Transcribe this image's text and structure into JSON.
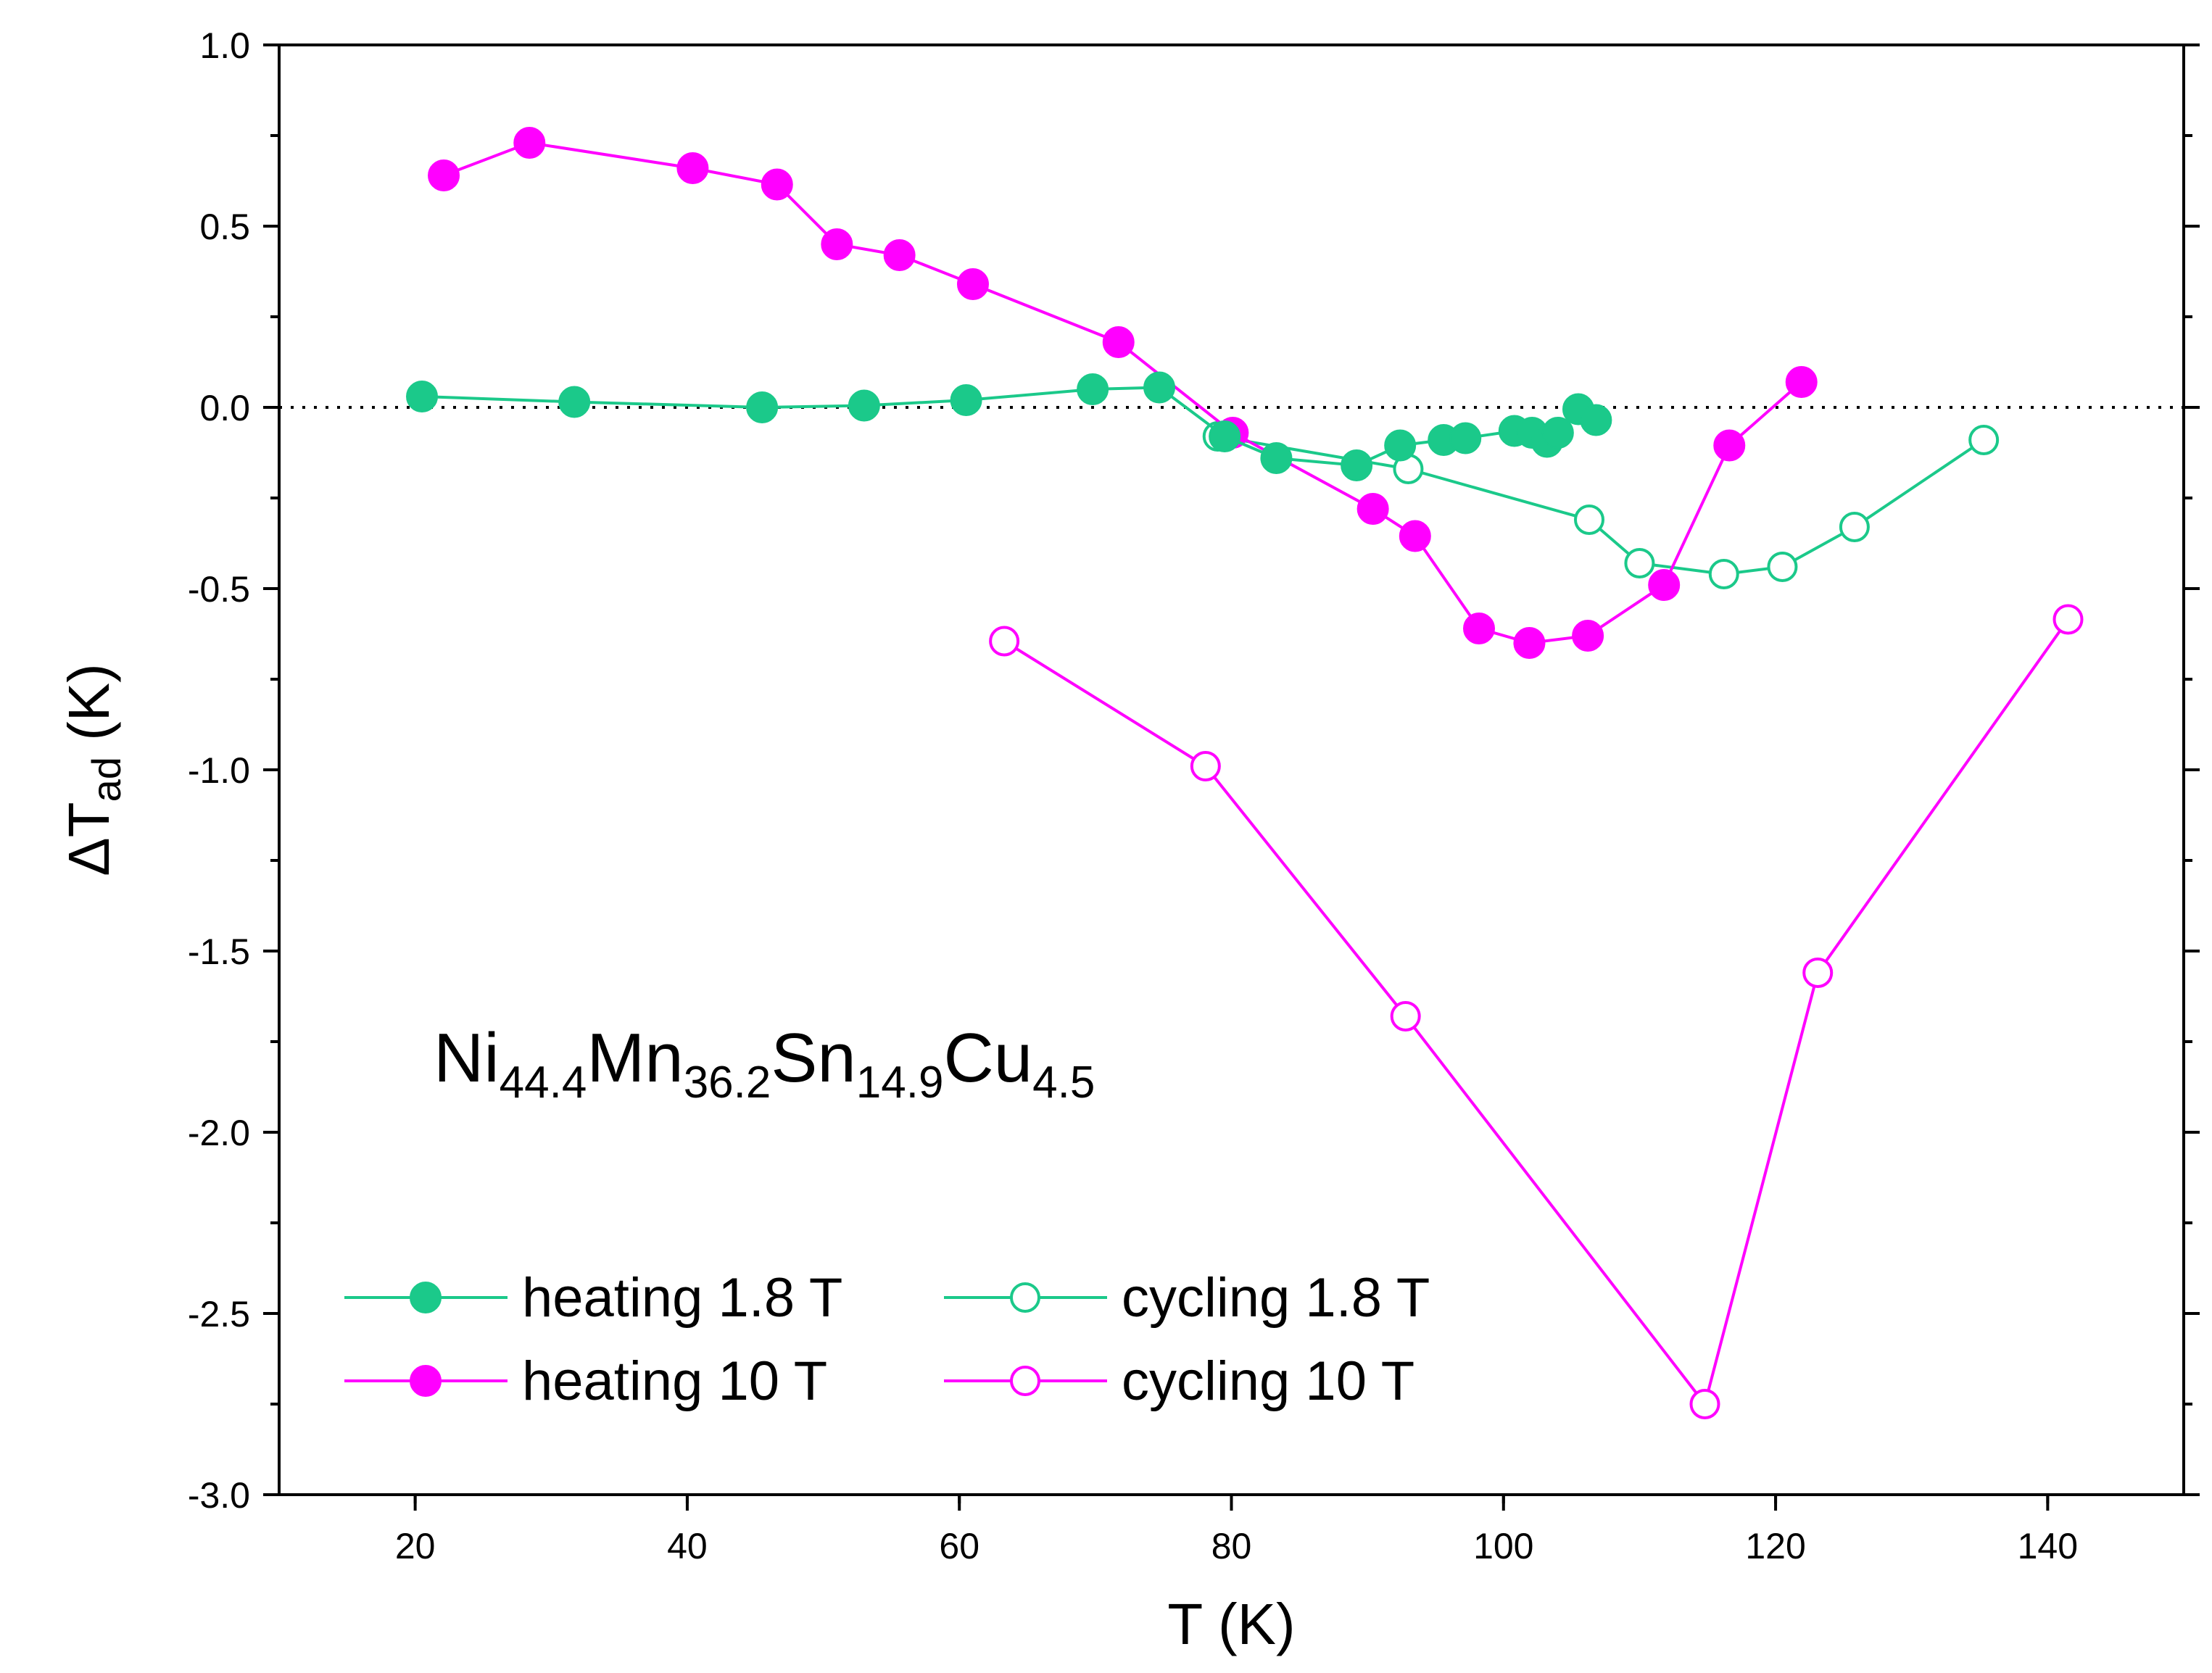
{
  "chart_data": {
    "type": "line",
    "title": "",
    "xlabel": "T (K)",
    "ylabel_main": "ΔT",
    "ylabel_sub": "ad",
    "ylabel_unit": " (K)",
    "xlim": [
      10,
      150
    ],
    "ylim": [
      -3.0,
      1.0
    ],
    "x_ticks": [
      20,
      40,
      60,
      80,
      100,
      120,
      140
    ],
    "x_tick_labels": [
      "20",
      "40",
      "60",
      "80",
      "100",
      "120",
      "140"
    ],
    "y_ticks": [
      1.0,
      0.5,
      0.0,
      -0.5,
      -1.0,
      -1.5,
      -2.0,
      -2.5,
      -3.0
    ],
    "y_tick_labels": [
      "1.0",
      "0.5",
      "0.0",
      "-0.5",
      "-1.0",
      "-1.5",
      "-2.0",
      "-2.5",
      "-3.0"
    ],
    "grid": false,
    "reference_line": {
      "y": 0.0,
      "style": "dotted"
    },
    "legend_position": "bottom-left",
    "annotation": {
      "parts": [
        {
          "text": "Ni",
          "sub": false
        },
        {
          "text": "44.4",
          "sub": true
        },
        {
          "text": "Mn",
          "sub": false
        },
        {
          "text": "36.2",
          "sub": true
        },
        {
          "text": "Sn",
          "sub": false
        },
        {
          "text": "14.9",
          "sub": true
        },
        {
          "text": "Cu",
          "sub": false
        },
        {
          "text": "4.5",
          "sub": true
        }
      ]
    },
    "series": [
      {
        "name": "heating 1.8 T",
        "color": "#1bc98a",
        "marker": "filled-circle",
        "x": [
          20.5,
          31.7,
          45.5,
          53,
          60.5,
          69.8,
          74.7,
          79.5,
          83.3,
          89.2,
          92.4,
          95.6,
          97.2,
          100.8,
          102.1,
          103.2,
          104,
          105.5,
          106.8
        ],
        "y": [
          0.03,
          0.015,
          0.0,
          0.005,
          0.02,
          0.05,
          0.055,
          -0.08,
          -0.14,
          -0.16,
          -0.105,
          -0.09,
          -0.085,
          -0.065,
          -0.07,
          -0.095,
          -0.07,
          -0.005,
          -0.035
        ]
      },
      {
        "name": "cycling 1.8 T",
        "color": "#1bc98a",
        "marker": "open-circle",
        "x": [
          79,
          93,
          106.3,
          110,
          116.2,
          120.5,
          125.8,
          135.3
        ],
        "y": [
          -0.08,
          -0.17,
          -0.31,
          -0.43,
          -0.46,
          -0.44,
          -0.33,
          -0.09
        ]
      },
      {
        "name": "heating 10 T",
        "color": "#ff00ff",
        "marker": "filled-circle",
        "x": [
          22.1,
          28.4,
          40.4,
          46.6,
          51,
          55.6,
          61,
          71.7,
          80.1,
          90.4,
          93.5,
          98.2,
          101.9,
          106.2,
          111.8,
          116.6,
          121.9
        ],
        "y": [
          0.64,
          0.73,
          0.66,
          0.615,
          0.45,
          0.42,
          0.34,
          0.18,
          -0.07,
          -0.28,
          -0.355,
          -0.61,
          -0.65,
          -0.63,
          -0.49,
          -0.105,
          0.07
        ]
      },
      {
        "name": "cycling 10 T",
        "color": "#ff00ff",
        "marker": "open-circle",
        "x": [
          63.3,
          78.1,
          92.8,
          114.8,
          123.1,
          141.5
        ],
        "y": [
          -0.645,
          -0.99,
          -1.68,
          -2.75,
          -1.56,
          -0.585
        ]
      }
    ]
  }
}
